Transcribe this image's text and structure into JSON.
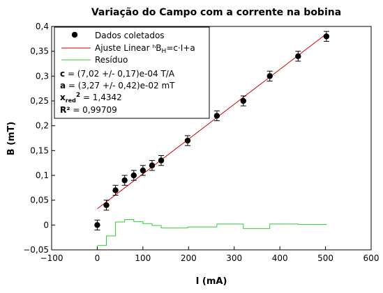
{
  "chart_data": {
    "type": "scatter",
    "title": "Variação do Campo com a corrente na bobina",
    "xlabel": "I (mA)",
    "ylabel": "B (mT)",
    "xlim": [
      -100,
      600
    ],
    "ylim": [
      -0.05,
      0.4
    ],
    "x_ticks": [
      -100,
      0,
      100,
      200,
      300,
      400,
      500,
      600
    ],
    "x_tick_labels": [
      "−100",
      "0",
      "100",
      "200",
      "300",
      "400",
      "500",
      "600"
    ],
    "y_ticks": [
      -0.05,
      0,
      0.05,
      0.1,
      0.15,
      0.2,
      0.25,
      0.3,
      0.35,
      0.4
    ],
    "y_tick_labels": [
      "−0,05",
      "0",
      "0,05",
      "0,1",
      "0,15",
      "0,2",
      "0,25",
      "0,3",
      "0,35",
      "0,4"
    ],
    "grid": false,
    "legend_position": "top-left",
    "series": [
      {
        "name": "Dados coletados",
        "kind": "points",
        "color": "#000000",
        "x": [
          0,
          20,
          40,
          60,
          80,
          100,
          120,
          140,
          198,
          262,
          320,
          378,
          440,
          502
        ],
        "y": [
          0.0,
          0.04,
          0.07,
          0.09,
          0.1,
          0.11,
          0.12,
          0.13,
          0.17,
          0.22,
          0.25,
          0.3,
          0.34,
          0.38
        ],
        "yerr": 0.01
      },
      {
        "name": "Ajuste Linear",
        "name_formula_prefix": "ʰB",
        "name_formula_sub": "H",
        "name_formula_suffix": "=c·I+a",
        "kind": "line",
        "color": "#cc0000",
        "x": [
          0,
          502
        ],
        "y": [
          0.0327,
          0.3851
        ]
      },
      {
        "name": "Resíduo",
        "kind": "step",
        "color": "#33cc33",
        "x": [
          0,
          20,
          40,
          60,
          80,
          100,
          120,
          140,
          198,
          262,
          320,
          378,
          440,
          502
        ],
        "y": [
          -0.041,
          -0.022,
          0.006,
          0.011,
          0.007,
          0.003,
          -0.001,
          -0.006,
          -0.004,
          0.002,
          -0.007,
          0.002,
          0.001,
          0.0
        ]
      }
    ],
    "fit_stats": [
      {
        "param": "c",
        "text": " = (7,02 +/- 0,17)e-04 T/A"
      },
      {
        "param": "a",
        "text": " = (3,27 +/- 0,42)e-02 mT"
      },
      {
        "param": "x",
        "sub": "red",
        "sup": "2",
        "text": " = 1,4342"
      },
      {
        "param": "R²",
        "text": " = 0,99709"
      }
    ]
  }
}
